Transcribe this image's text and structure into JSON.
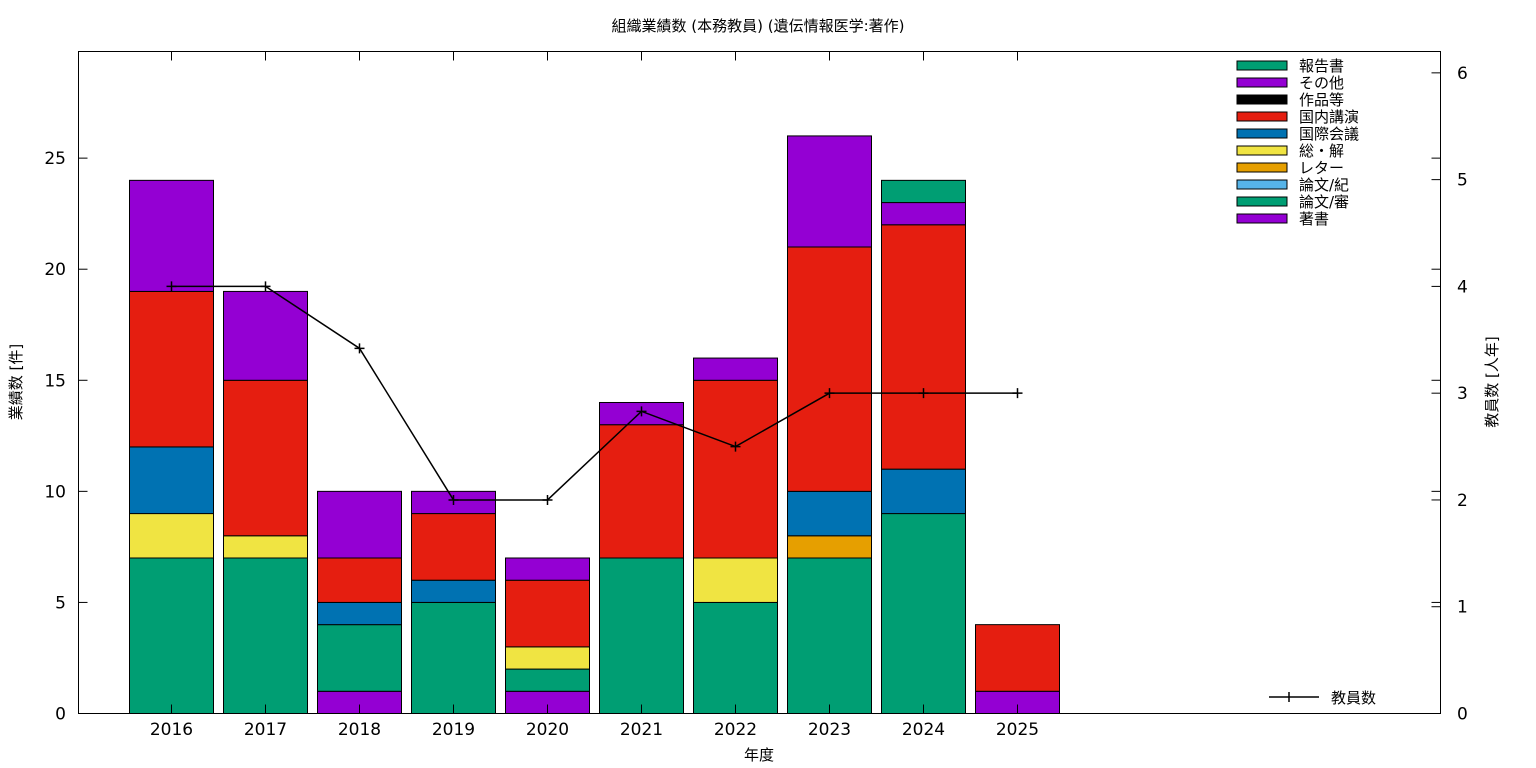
{
  "chart_data": {
    "type": "bar",
    "stacked": true,
    "title": "組織業績数 (本務教員) (遺伝情報医学:著作)",
    "xlabel": "年度",
    "ylabel": "業績数 [件]",
    "y2label": "教員数 [人年]",
    "ylim": [
      0,
      29.8
    ],
    "y2lim": [
      0,
      6.2
    ],
    "yticks": [
      0,
      5,
      10,
      15,
      20,
      25
    ],
    "y2ticks": [
      0,
      1,
      2,
      3,
      4,
      5,
      6
    ],
    "grid": false,
    "legend_position": "top-right",
    "categories": [
      "2016",
      "2017",
      "2018",
      "2019",
      "2020",
      "2021",
      "2022",
      "2023",
      "2024",
      "2025"
    ],
    "legend_order": [
      "報告書",
      "その他",
      "作品等",
      "国内講演",
      "国際会議",
      "総・解",
      "レター",
      "論文/紀",
      "論文/審",
      "著書"
    ],
    "series": [
      {
        "name": "著書",
        "color": "#9400d3",
        "values": [
          0,
          0,
          1,
          0,
          1,
          0,
          0,
          0,
          0,
          1
        ]
      },
      {
        "name": "論文/審",
        "color": "#009e73",
        "values": [
          7,
          7,
          3,
          5,
          1,
          7,
          5,
          7,
          9,
          0
        ]
      },
      {
        "name": "論文/紀",
        "color": "#56b4e9",
        "values": [
          0,
          0,
          0,
          0,
          0,
          0,
          0,
          0,
          0,
          0
        ]
      },
      {
        "name": "レター",
        "color": "#e69f00",
        "values": [
          0,
          0,
          0,
          0,
          0,
          0,
          0,
          1,
          0,
          0
        ]
      },
      {
        "name": "総・解",
        "color": "#f0e442",
        "values": [
          2,
          1,
          0,
          0,
          1,
          0,
          2,
          0,
          0,
          0
        ]
      },
      {
        "name": "国際会議",
        "color": "#0072b2",
        "values": [
          3,
          0,
          1,
          1,
          0,
          0,
          0,
          2,
          2,
          0
        ]
      },
      {
        "name": "国内講演",
        "color": "#e51e10",
        "values": [
          7,
          7,
          2,
          3,
          3,
          6,
          8,
          11,
          11,
          3
        ]
      },
      {
        "name": "作品等",
        "color": "#000000",
        "values": [
          0,
          0,
          0,
          0,
          0,
          0,
          0,
          0,
          0,
          0
        ]
      },
      {
        "name": "その他",
        "color": "#9400d3",
        "values": [
          5,
          4,
          3,
          1,
          1,
          1,
          1,
          5,
          1,
          0
        ]
      },
      {
        "name": "報告書",
        "color": "#009e73",
        "values": [
          0,
          0,
          0,
          0,
          0,
          0,
          0,
          0,
          1,
          0
        ]
      }
    ],
    "line_series": {
      "name": "教員数",
      "axis": "y2",
      "color": "#000000",
      "values": [
        4,
        4,
        3.42,
        2,
        2,
        2.83,
        2.5,
        3,
        3,
        3
      ]
    }
  }
}
